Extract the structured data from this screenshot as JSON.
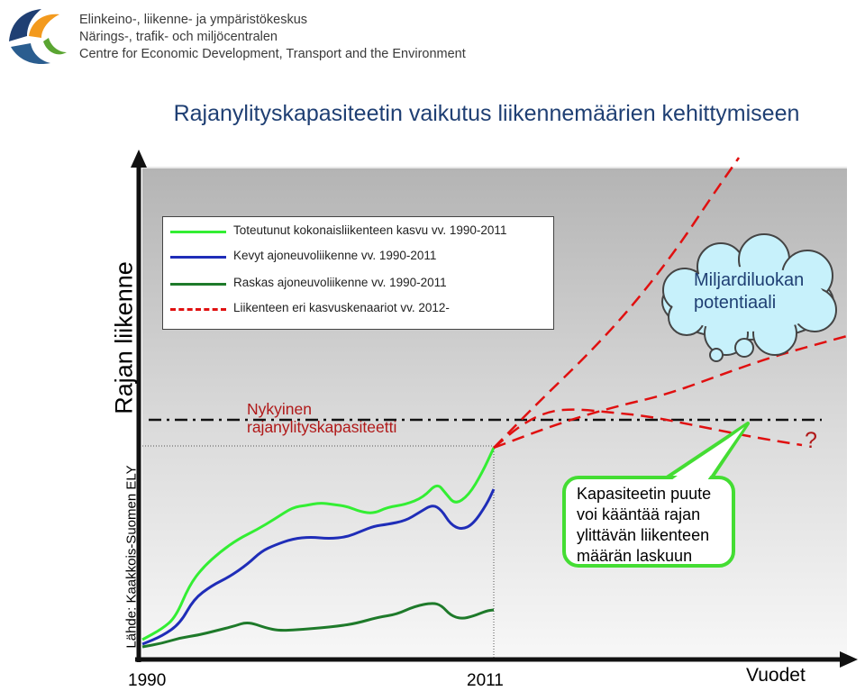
{
  "org": {
    "lines": [
      "Elinkeino-, liikenne- ja ympäristökeskus",
      "Närings-, trafik- och miljöcentralen",
      "Centre for Economic Development, Transport and the Environment"
    ]
  },
  "chart_data": {
    "type": "line",
    "title": "Rajanylityskapasiteetin vaikutus liikennemäärien kehittymiseen",
    "ylabel": "Rajan liikenne",
    "xlabel": "Vuodet",
    "source": "Lähde: Kaakkois-Suomen ELY",
    "x_ticks": [
      "1990",
      "2011"
    ],
    "grid": false,
    "legend_position": "top-left",
    "legend": [
      {
        "label": "Toteutunut kokonaisliikenteen kasvu vv. 1990-2011",
        "color": "#33ee33",
        "style": "solid"
      },
      {
        "label": "Kevyt ajoneuvoliikenne vv. 1990-2011",
        "color": "#1f2db8",
        "style": "solid"
      },
      {
        "label": "Raskas ajoneuvoliikenne vv. 1990-2011",
        "color": "#1e7a2a",
        "style": "solid"
      },
      {
        "label": "Liikenteen eri kasvuskenaariot vv. 2012-",
        "color": "#e01010",
        "style": "dashed"
      }
    ],
    "annotations": {
      "capacity_line_label": [
        "Nykyinen",
        "rajanylityskapasiteetti"
      ],
      "cloud_label": [
        "Miljardiluokan",
        "potentiaali"
      ],
      "question_mark": "?",
      "bubble_label": [
        "Kapasiteetin puute",
        "voi kääntää rajan",
        "ylittävän liikenteen",
        "määrän laskuun"
      ]
    },
    "series": [
      {
        "name": "Toteutunut kokonaisliikenteen kasvu vv. 1990-2011",
        "color": "#33ee33",
        "style": "solid",
        "points": [
          [
            158,
            710
          ],
          [
            180,
            698
          ],
          [
            195,
            685
          ],
          [
            210,
            650
          ],
          [
            225,
            630
          ],
          [
            245,
            612
          ],
          [
            265,
            598
          ],
          [
            285,
            588
          ],
          [
            305,
            576
          ],
          [
            325,
            563
          ],
          [
            340,
            561
          ],
          [
            355,
            558
          ],
          [
            370,
            560
          ],
          [
            385,
            562
          ],
          [
            400,
            568
          ],
          [
            415,
            570
          ],
          [
            430,
            563
          ],
          [
            450,
            560
          ],
          [
            470,
            552
          ],
          [
            485,
            536
          ],
          [
            495,
            548
          ],
          [
            505,
            560
          ],
          [
            520,
            550
          ],
          [
            535,
            525
          ],
          [
            548,
            497
          ]
        ]
      },
      {
        "name": "Kevyt ajoneuvoliikenne vv. 1990-2011",
        "color": "#1f2db8",
        "style": "solid",
        "points": [
          [
            158,
            715
          ],
          [
            180,
            706
          ],
          [
            200,
            692
          ],
          [
            215,
            665
          ],
          [
            235,
            650
          ],
          [
            255,
            640
          ],
          [
            275,
            626
          ],
          [
            290,
            612
          ],
          [
            305,
            605
          ],
          [
            325,
            598
          ],
          [
            345,
            596
          ],
          [
            365,
            598
          ],
          [
            385,
            596
          ],
          [
            400,
            590
          ],
          [
            415,
            584
          ],
          [
            430,
            582
          ],
          [
            450,
            578
          ],
          [
            465,
            569
          ],
          [
            480,
            560
          ],
          [
            490,
            566
          ],
          [
            500,
            582
          ],
          [
            512,
            588
          ],
          [
            525,
            582
          ],
          [
            540,
            560
          ],
          [
            548,
            543
          ]
        ]
      },
      {
        "name": "Raskas ajoneuvoliikenne vv. 1990-2011",
        "color": "#1e7a2a",
        "style": "solid",
        "points": [
          [
            158,
            718
          ],
          [
            180,
            714
          ],
          [
            200,
            708
          ],
          [
            220,
            705
          ],
          [
            240,
            700
          ],
          [
            260,
            695
          ],
          [
            275,
            690
          ],
          [
            295,
            697
          ],
          [
            310,
            700
          ],
          [
            330,
            699
          ],
          [
            355,
            697
          ],
          [
            375,
            695
          ],
          [
            395,
            692
          ],
          [
            420,
            685
          ],
          [
            440,
            682
          ],
          [
            460,
            673
          ],
          [
            480,
            669
          ],
          [
            490,
            672
          ],
          [
            500,
            683
          ],
          [
            512,
            687
          ],
          [
            525,
            684
          ],
          [
            540,
            678
          ],
          [
            548,
            677
          ]
        ]
      }
    ],
    "scenarios": [
      {
        "name": "high",
        "points": [
          [
            548,
            497
          ],
          [
            600,
            444
          ],
          [
            650,
            396
          ],
          [
            700,
            342
          ],
          [
            750,
            278
          ],
          [
            790,
            218
          ],
          [
            820,
            175
          ]
        ]
      },
      {
        "name": "medium",
        "points": [
          [
            548,
            497
          ],
          [
            620,
            470
          ],
          [
            680,
            452
          ],
          [
            740,
            438
          ],
          [
            800,
            416
          ],
          [
            860,
            395
          ],
          [
            940,
            373
          ]
        ]
      },
      {
        "name": "decline",
        "points": [
          [
            548,
            497
          ],
          [
            580,
            470
          ],
          [
            610,
            456
          ],
          [
            640,
            454
          ],
          [
            680,
            458
          ],
          [
            720,
            462
          ],
          [
            780,
            474
          ],
          [
            840,
            486
          ],
          [
            890,
            494
          ]
        ]
      }
    ],
    "capacity_line": {
      "color": "#111111",
      "style": "dash-dot"
    }
  }
}
